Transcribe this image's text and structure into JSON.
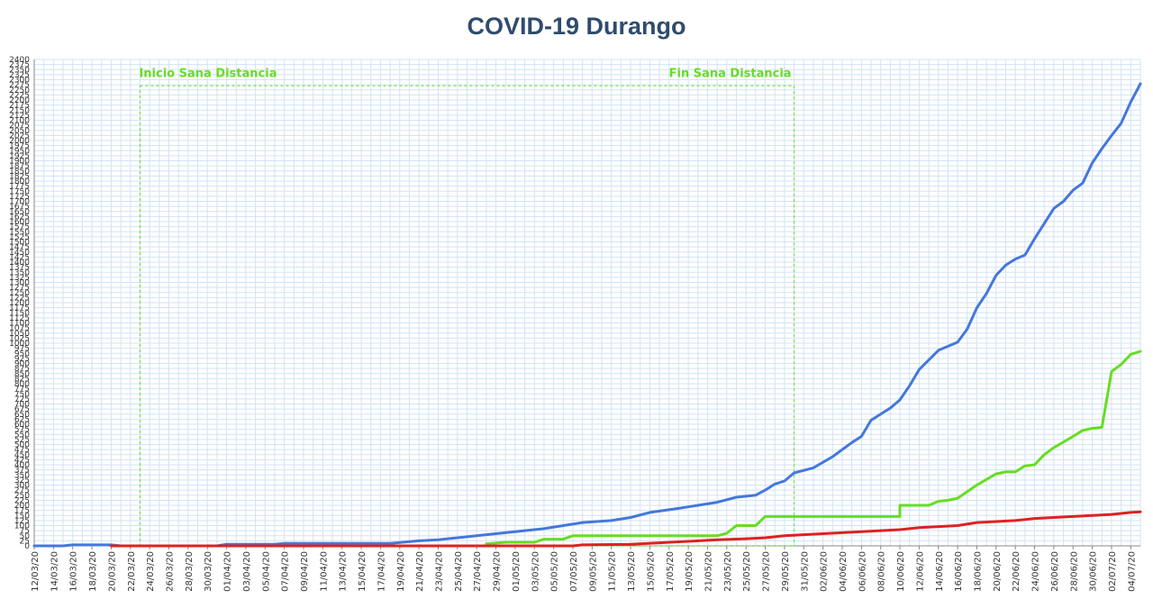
{
  "chart_data": {
    "type": "line",
    "title": "COVID-19 Durango",
    "xlabel": "",
    "ylabel": "",
    "x_dates": [
      "12/03/20",
      "14/03/20",
      "16/03/20",
      "18/03/20",
      "20/03/20",
      "22/03/20",
      "24/03/20",
      "26/03/20",
      "28/03/20",
      "30/03/20",
      "01/04/20",
      "03/04/20",
      "05/04/20",
      "07/04/20",
      "09/04/20",
      "11/04/20",
      "13/04/20",
      "15/04/20",
      "17/04/20",
      "19/04/20",
      "21/04/20",
      "23/04/20",
      "25/04/20",
      "27/04/20",
      "29/04/20",
      "01/05/20",
      "03/05/20",
      "05/05/20",
      "07/05/20",
      "09/05/20",
      "11/05/20",
      "13/05/20",
      "15/05/20",
      "17/05/20",
      "19/05/20",
      "21/05/20",
      "23/05/20",
      "25/05/20",
      "27/05/20",
      "29/05/20",
      "31/05/20",
      "02/06/20",
      "04/06/20",
      "06/06/20",
      "08/06/20",
      "10/06/20",
      "12/06/20",
      "14/06/20",
      "16/06/20",
      "18/06/20",
      "20/06/20",
      "22/06/20",
      "24/06/20",
      "26/06/20",
      "28/06/20",
      "30/06/20",
      "02/07/20",
      "04/07/20"
    ],
    "last_date": "05/07/20",
    "ylim": [
      0,
      2400
    ],
    "ytick_step": 25,
    "grid": true,
    "annotations": [
      {
        "text": "Inicio Sana Distancia",
        "date": "23/03/20"
      },
      {
        "text": "Fin Sana Distancia",
        "date": "30/05/20"
      }
    ],
    "box_top_value": 2270,
    "series": [
      {
        "color": "#4477dd",
        "points": [
          [
            "12/03/20",
            0
          ],
          [
            "15/03/20",
            0
          ],
          [
            "16/03/20",
            5
          ],
          [
            "20/03/20",
            5
          ],
          [
            "21/03/20",
            0
          ],
          [
            "31/03/20",
            0
          ],
          [
            "01/04/20",
            8
          ],
          [
            "06/04/20",
            8
          ],
          [
            "07/04/20",
            12
          ],
          [
            "18/04/20",
            12
          ],
          [
            "21/04/20",
            25
          ],
          [
            "23/04/20",
            30
          ],
          [
            "26/04/20",
            45
          ],
          [
            "28/04/20",
            55
          ],
          [
            "01/05/20",
            70
          ],
          [
            "04/05/20",
            85
          ],
          [
            "06/05/20",
            100
          ],
          [
            "08/05/20",
            115
          ],
          [
            "11/05/20",
            125
          ],
          [
            "13/05/20",
            140
          ],
          [
            "15/05/20",
            165
          ],
          [
            "18/05/20",
            185
          ],
          [
            "20/05/20",
            200
          ],
          [
            "22/05/20",
            215
          ],
          [
            "24/05/20",
            240
          ],
          [
            "26/05/20",
            250
          ],
          [
            "27/05/20",
            275
          ],
          [
            "28/05/20",
            305
          ],
          [
            "29/05/20",
            320
          ],
          [
            "30/05/20",
            360
          ],
          [
            "01/06/20",
            385
          ],
          [
            "03/06/20",
            440
          ],
          [
            "05/06/20",
            510
          ],
          [
            "06/06/20",
            540
          ],
          [
            "07/06/20",
            620
          ],
          [
            "09/06/20",
            680
          ],
          [
            "10/06/20",
            720
          ],
          [
            "11/06/20",
            790
          ],
          [
            "12/06/20",
            870
          ],
          [
            "14/06/20",
            965
          ],
          [
            "16/06/20",
            1005
          ],
          [
            "17/06/20",
            1070
          ],
          [
            "18/06/20",
            1175
          ],
          [
            "19/06/20",
            1245
          ],
          [
            "20/06/20",
            1335
          ],
          [
            "21/06/20",
            1385
          ],
          [
            "22/06/20",
            1415
          ],
          [
            "23/06/20",
            1435
          ],
          [
            "24/06/20",
            1515
          ],
          [
            "26/06/20",
            1665
          ],
          [
            "27/06/20",
            1700
          ],
          [
            "28/06/20",
            1755
          ],
          [
            "29/06/20",
            1790
          ],
          [
            "30/06/20",
            1890
          ],
          [
            "01/07/20",
            1960
          ],
          [
            "02/07/20",
            2025
          ],
          [
            "03/07/20",
            2085
          ],
          [
            "04/07/20",
            2190
          ],
          [
            "05/07/20",
            2280
          ]
        ]
      },
      {
        "color": "#66dd22",
        "points": [
          [
            "28/04/20",
            10
          ],
          [
            "30/04/20",
            18
          ],
          [
            "03/05/20",
            18
          ],
          [
            "04/05/20",
            33
          ],
          [
            "06/05/20",
            33
          ],
          [
            "07/05/20",
            50
          ],
          [
            "22/05/20",
            50
          ],
          [
            "23/05/20",
            62
          ],
          [
            "24/05/20",
            100
          ],
          [
            "26/05/20",
            100
          ],
          [
            "27/05/20",
            145
          ],
          [
            "10/06/20",
            145
          ],
          [
            "10/06/20",
            200
          ],
          [
            "13/06/20",
            200
          ],
          [
            "14/06/20",
            220
          ],
          [
            "15/06/20",
            225
          ],
          [
            "16/06/20",
            235
          ],
          [
            "18/06/20",
            300
          ],
          [
            "20/06/20",
            355
          ],
          [
            "21/06/20",
            365
          ],
          [
            "22/06/20",
            365
          ],
          [
            "23/06/20",
            395
          ],
          [
            "24/06/20",
            400
          ],
          [
            "25/06/20",
            450
          ],
          [
            "26/06/20",
            485
          ],
          [
            "28/06/20",
            540
          ],
          [
            "29/06/20",
            570
          ],
          [
            "30/06/20",
            580
          ],
          [
            "01/07/20",
            585
          ],
          [
            "02/07/20",
            860
          ],
          [
            "03/07/20",
            895
          ],
          [
            "04/07/20",
            945
          ],
          [
            "05/07/20",
            960
          ]
        ]
      },
      {
        "color": "#dd2222",
        "points": [
          [
            "20/03/20",
            0
          ],
          [
            "07/05/20",
            0
          ],
          [
            "08/05/20",
            5
          ],
          [
            "13/05/20",
            8
          ],
          [
            "16/05/20",
            15
          ],
          [
            "19/05/20",
            22
          ],
          [
            "22/05/20",
            30
          ],
          [
            "25/05/20",
            35
          ],
          [
            "27/05/20",
            40
          ],
          [
            "29/05/20",
            50
          ],
          [
            "31/05/20",
            55
          ],
          [
            "02/06/20",
            60
          ],
          [
            "04/06/20",
            65
          ],
          [
            "06/06/20",
            70
          ],
          [
            "08/06/20",
            75
          ],
          [
            "10/06/20",
            80
          ],
          [
            "12/06/20",
            90
          ],
          [
            "14/06/20",
            95
          ],
          [
            "16/06/20",
            100
          ],
          [
            "18/06/20",
            115
          ],
          [
            "20/06/20",
            120
          ],
          [
            "22/06/20",
            125
          ],
          [
            "24/06/20",
            135
          ],
          [
            "26/06/20",
            140
          ],
          [
            "28/06/20",
            145
          ],
          [
            "30/06/20",
            150
          ],
          [
            "02/07/20",
            155
          ],
          [
            "04/07/20",
            165
          ],
          [
            "05/07/20",
            168
          ]
        ]
      }
    ]
  }
}
